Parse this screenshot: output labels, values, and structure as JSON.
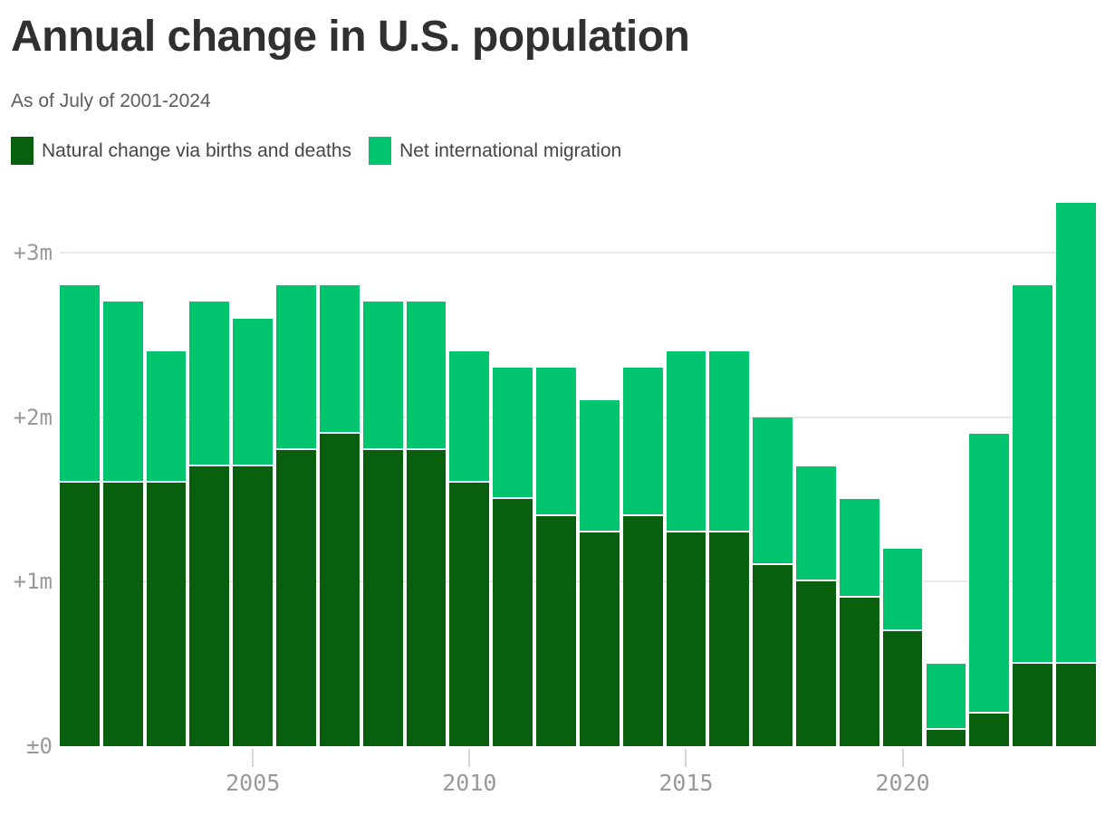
{
  "header": {
    "title": "Annual change in U.S. population",
    "subtitle": "As of July of 2001-2024"
  },
  "legend": {
    "items": [
      {
        "label": "Natural change via births and deaths",
        "color": "#085f0e"
      },
      {
        "label": "Net international migration",
        "color": "#00c46e"
      }
    ]
  },
  "chart_data": {
    "type": "bar",
    "stacked": true,
    "units": "millions of people",
    "categories": [
      2001,
      2002,
      2003,
      2004,
      2005,
      2006,
      2007,
      2008,
      2009,
      2010,
      2011,
      2012,
      2013,
      2014,
      2015,
      2016,
      2017,
      2018,
      2019,
      2020,
      2021,
      2022,
      2023,
      2024
    ],
    "series": [
      {
        "name": "Natural change via births and deaths",
        "color": "#085f0e",
        "values": [
          1.6,
          1.6,
          1.6,
          1.7,
          1.7,
          1.8,
          1.9,
          1.8,
          1.8,
          1.6,
          1.5,
          1.4,
          1.3,
          1.4,
          1.3,
          1.3,
          1.1,
          1.0,
          0.9,
          0.7,
          0.1,
          0.2,
          0.5,
          0.5
        ]
      },
      {
        "name": "Net international migration",
        "color": "#00c46e",
        "values": [
          1.2,
          1.1,
          0.8,
          1.0,
          0.9,
          1.0,
          0.9,
          0.9,
          0.9,
          0.8,
          0.8,
          0.9,
          0.8,
          0.9,
          1.1,
          1.1,
          0.9,
          0.7,
          0.6,
          0.5,
          0.4,
          1.7,
          2.3,
          2.8
        ]
      }
    ],
    "title": "Annual change in U.S. population",
    "xlabel": "",
    "ylabel": "",
    "ylim": [
      0,
      3.35
    ],
    "grid": true,
    "legend_position": "top",
    "y_ticks": [
      {
        "label": "±0",
        "value": 0
      },
      {
        "label": "+1m",
        "value": 1
      },
      {
        "label": "+2m",
        "value": 2
      },
      {
        "label": "+3m",
        "value": 3
      }
    ],
    "x_ticks": [
      2005,
      2010,
      2015,
      2020
    ]
  }
}
